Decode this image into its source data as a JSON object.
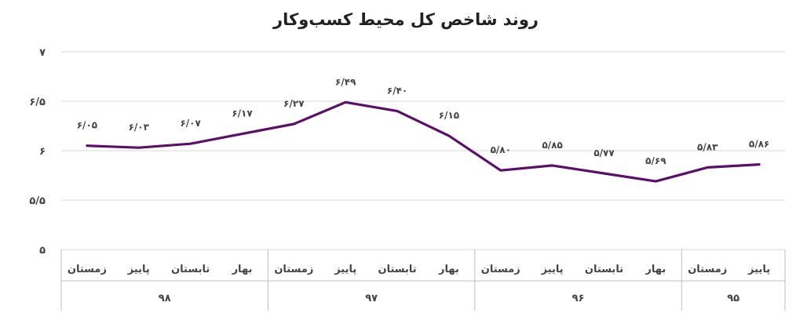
{
  "chart_data": {
    "type": "line",
    "title": "روند شاخص کل محیط کسب‌وکار",
    "ylim": [
      5,
      7
    ],
    "yticks": [
      5,
      5.5,
      6,
      6.5,
      7
    ],
    "ytick_labels": [
      "۵",
      "۵/۵",
      "۶",
      "۶/۵",
      "۷"
    ],
    "grid": true,
    "categories": [
      "پاییز ۹۵",
      "زمستان ۹۵",
      "بهار ۹۶",
      "تابستان ۹۶",
      "پاییز ۹۶",
      "زمستان ۹۶",
      "بهار ۹۷",
      "تابستان ۹۷",
      "پاییز ۹۷",
      "زمستان ۹۷",
      "بهار ۹۸",
      "تابستان ۹۸",
      "پاییز ۹۸",
      "زمستان ۹۸"
    ],
    "season_labels": [
      "پاییز",
      "زمستان",
      "بهار",
      "تابستان",
      "پاییز",
      "زمستان",
      "بهار",
      "تابستان",
      "پاییز",
      "زمستان",
      "بهار",
      "تابستان",
      "پاییز",
      "زمستان"
    ],
    "year_groups": [
      {
        "label": "۹۵",
        "count": 2
      },
      {
        "label": "۹۶",
        "count": 4
      },
      {
        "label": "۹۷",
        "count": 4
      },
      {
        "label": "۹۸",
        "count": 4
      }
    ],
    "series": [
      {
        "color": "#5b0f6b",
        "values": [
          5.86,
          5.83,
          5.69,
          5.77,
          5.85,
          5.8,
          6.15,
          6.4,
          6.49,
          6.27,
          6.17,
          6.07,
          6.03,
          6.05
        ],
        "labels": [
          "۵/۸۶",
          "۵/۸۳",
          "۵/۶۹",
          "۵/۷۷",
          "۵/۸۵",
          "۵/۸۰",
          "۶/۱۵",
          "۶/۴۰",
          "۶/۴۹",
          "۶/۲۷",
          "۶/۱۷",
          "۶/۰۷",
          "۶/۰۳",
          "۶/۰۵"
        ]
      }
    ]
  }
}
